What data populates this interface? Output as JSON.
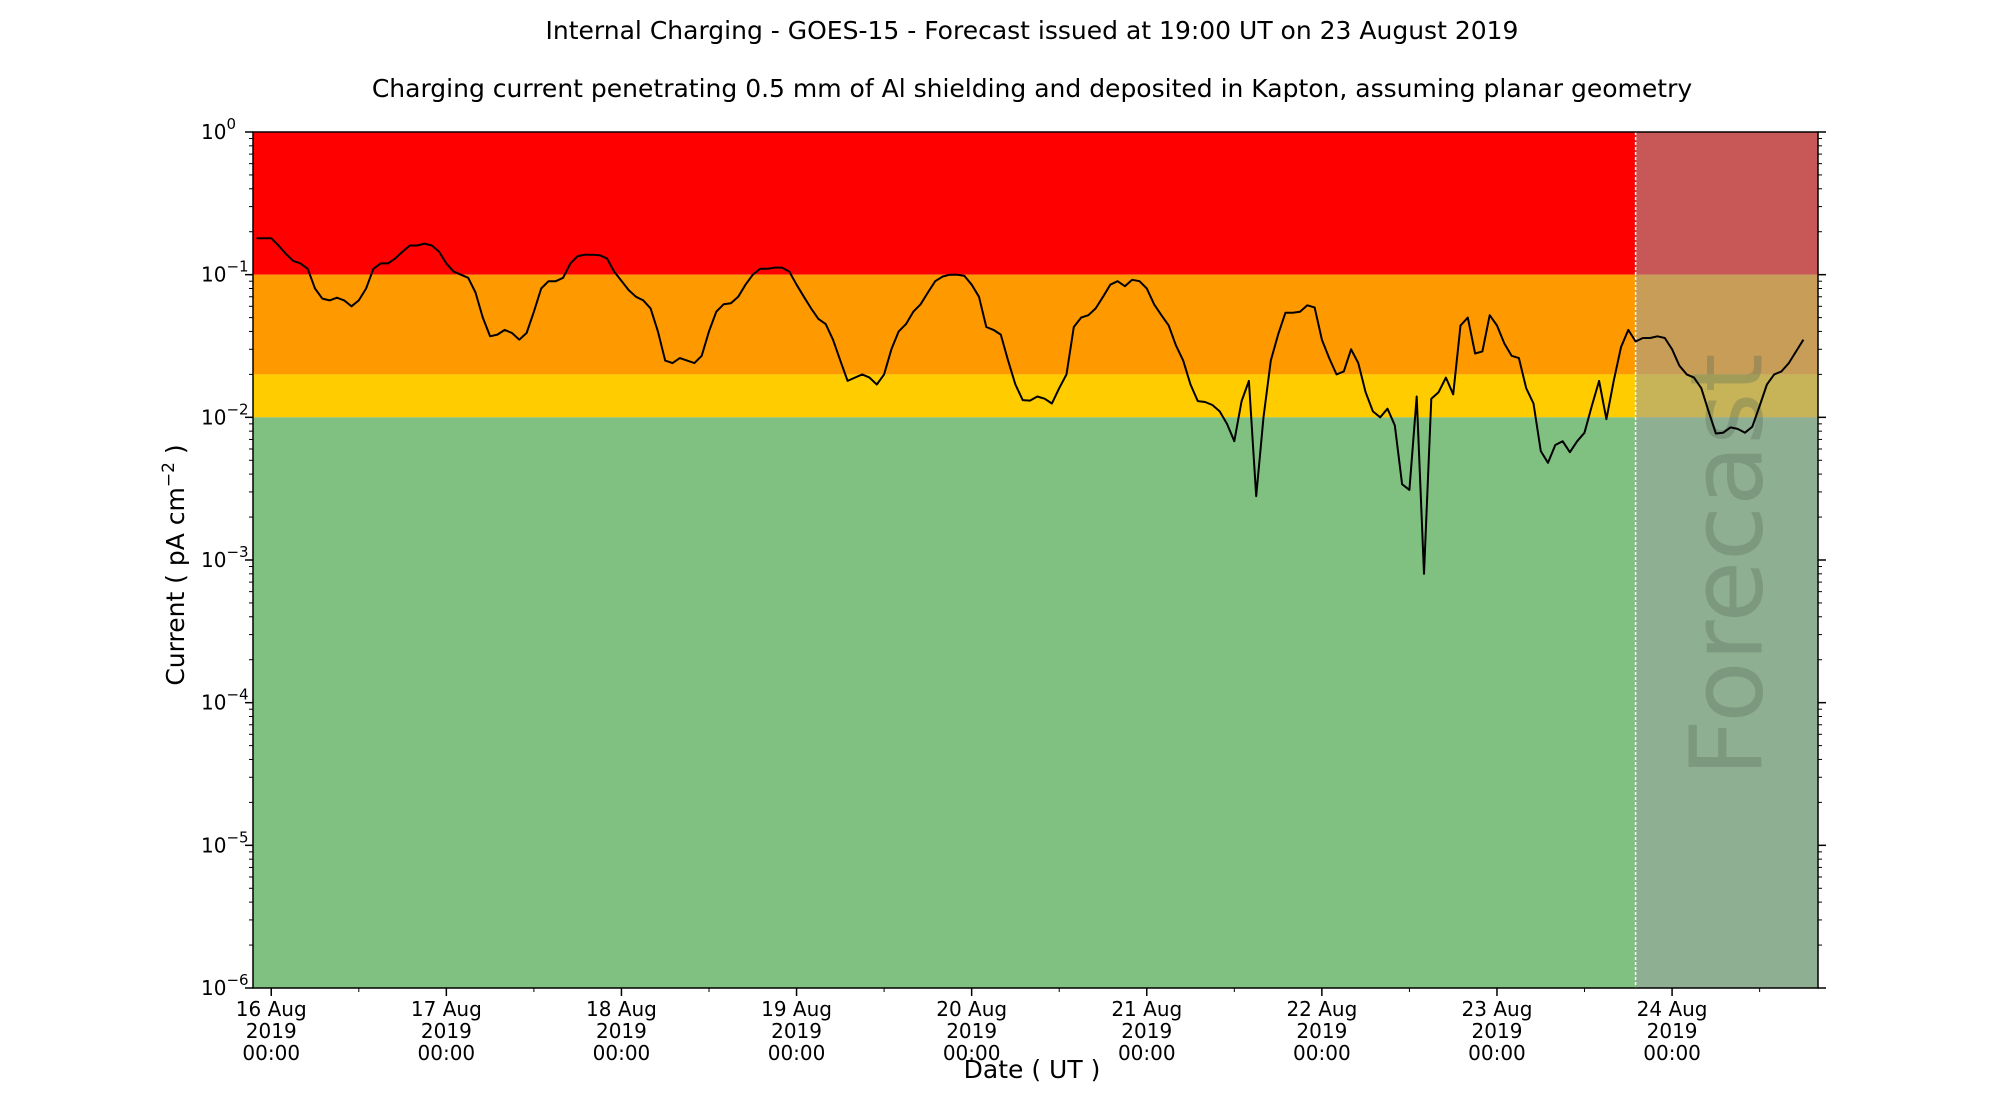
{
  "chart_data": {
    "type": "line",
    "title": "Internal Charging - GOES-15 - Forecast issued at 19:00 UT on 23 August 2019",
    "subtitle": "Charging current penetrating 0.5 mm of Al shielding and deposited in Kapton, assuming planar geometry",
    "xlabel": "Date ( UT )",
    "ylabel": "Current ( pA cm",
    "ylabel_exponent": "−2",
    "ylabel_close": " )",
    "y_scale": "log",
    "ylim": [
      1e-06,
      1
    ],
    "y_ticks": [
      {
        "value": 1e-06,
        "base": "10",
        "exp": "−6"
      },
      {
        "value": 1e-05,
        "base": "10",
        "exp": "−5"
      },
      {
        "value": 0.0001,
        "base": "10",
        "exp": "−4"
      },
      {
        "value": 0.001,
        "base": "10",
        "exp": "−3"
      },
      {
        "value": 0.01,
        "base": "10",
        "exp": "−2"
      },
      {
        "value": 0.1,
        "base": "10",
        "exp": "−1"
      },
      {
        "value": 1,
        "base": "10",
        "exp": "0"
      }
    ],
    "xlim": [
      "2019-08-15T21:30",
      "2019-08-24T20:00"
    ],
    "x_ticks": [
      {
        "date": "2019-08-16T00:00",
        "line1": "16 Aug",
        "line2": "2019",
        "line3": "00:00"
      },
      {
        "date": "2019-08-17T00:00",
        "line1": "17 Aug",
        "line2": "2019",
        "line3": "00:00"
      },
      {
        "date": "2019-08-18T00:00",
        "line1": "18 Aug",
        "line2": "2019",
        "line3": "00:00"
      },
      {
        "date": "2019-08-19T00:00",
        "line1": "19 Aug",
        "line2": "2019",
        "line3": "00:00"
      },
      {
        "date": "2019-08-20T00:00",
        "line1": "20 Aug",
        "line2": "2019",
        "line3": "00:00"
      },
      {
        "date": "2019-08-21T00:00",
        "line1": "21 Aug",
        "line2": "2019",
        "line3": "00:00"
      },
      {
        "date": "2019-08-22T00:00",
        "line1": "22 Aug",
        "line2": "2019",
        "line3": "00:00"
      },
      {
        "date": "2019-08-23T00:00",
        "line1": "23 Aug",
        "line2": "2019",
        "line3": "00:00"
      },
      {
        "date": "2019-08-24T00:00",
        "line1": "24 Aug",
        "line2": "2019",
        "line3": "00:00"
      }
    ],
    "minor_x_ticks": [
      "2019-08-16T12:00",
      "2019-08-17T12:00",
      "2019-08-18T12:00",
      "2019-08-19T12:00",
      "2019-08-20T12:00",
      "2019-08-21T12:00",
      "2019-08-22T12:00",
      "2019-08-23T12:00",
      "2019-08-24T12:00"
    ],
    "bands": [
      {
        "name": "red",
        "from": 0.1,
        "to": 1,
        "color": "#ff0000"
      },
      {
        "name": "orange",
        "from": 0.02,
        "to": 0.1,
        "color": "#ff9900"
      },
      {
        "name": "yellow",
        "from": 0.01,
        "to": 0.02,
        "color": "#ffcc00"
      },
      {
        "name": "green",
        "from": 1e-06,
        "to": 0.01,
        "color": "#80c080"
      }
    ],
    "forecast": {
      "start": "2019-08-23T19:00",
      "label": "Forecast",
      "overlay_color": "#9aa0a0",
      "overlay_opacity": 0.55,
      "divider_color": "#ffffff"
    },
    "series": [
      {
        "color": "#000000",
        "points": [
          [
            "2019-08-15T22:00",
            0.18
          ],
          [
            "2019-08-16T00:00",
            0.18
          ],
          [
            "2019-08-16T01:00",
            0.16
          ],
          [
            "2019-08-16T02:00",
            0.14
          ],
          [
            "2019-08-16T03:00",
            0.125
          ],
          [
            "2019-08-16T04:00",
            0.12
          ],
          [
            "2019-08-16T05:00",
            0.11
          ],
          [
            "2019-08-16T06:00",
            0.08
          ],
          [
            "2019-08-16T07:00",
            0.068
          ],
          [
            "2019-08-16T08:00",
            0.066
          ],
          [
            "2019-08-16T09:00",
            0.069
          ],
          [
            "2019-08-16T10:00",
            0.066
          ],
          [
            "2019-08-16T11:00",
            0.06
          ],
          [
            "2019-08-16T12:00",
            0.066
          ],
          [
            "2019-08-16T13:00",
            0.08
          ],
          [
            "2019-08-16T14:00",
            0.11
          ],
          [
            "2019-08-16T15:00",
            0.12
          ],
          [
            "2019-08-16T16:00",
            0.12
          ],
          [
            "2019-08-16T17:00",
            0.13
          ],
          [
            "2019-08-16T18:00",
            0.145
          ],
          [
            "2019-08-16T19:00",
            0.16
          ],
          [
            "2019-08-16T20:00",
            0.16
          ],
          [
            "2019-08-16T21:00",
            0.165
          ],
          [
            "2019-08-16T22:00",
            0.16
          ],
          [
            "2019-08-16T23:00",
            0.145
          ],
          [
            "2019-08-17T00:00",
            0.12
          ],
          [
            "2019-08-17T01:00",
            0.105
          ],
          [
            "2019-08-17T02:00",
            0.1
          ],
          [
            "2019-08-17T03:00",
            0.095
          ],
          [
            "2019-08-17T04:00",
            0.075
          ],
          [
            "2019-08-17T05:00",
            0.05
          ],
          [
            "2019-08-17T06:00",
            0.037
          ],
          [
            "2019-08-17T07:00",
            0.038
          ],
          [
            "2019-08-17T08:00",
            0.041
          ],
          [
            "2019-08-17T09:00",
            0.039
          ],
          [
            "2019-08-17T10:00",
            0.035
          ],
          [
            "2019-08-17T11:00",
            0.039
          ],
          [
            "2019-08-17T12:00",
            0.055
          ],
          [
            "2019-08-17T13:00",
            0.08
          ],
          [
            "2019-08-17T14:00",
            0.09
          ],
          [
            "2019-08-17T15:00",
            0.09
          ],
          [
            "2019-08-17T16:00",
            0.095
          ],
          [
            "2019-08-17T17:00",
            0.12
          ],
          [
            "2019-08-17T18:00",
            0.135
          ],
          [
            "2019-08-17T19:00",
            0.138
          ],
          [
            "2019-08-17T20:00",
            0.138
          ],
          [
            "2019-08-17T21:00",
            0.137
          ],
          [
            "2019-08-17T22:00",
            0.13
          ],
          [
            "2019-08-17T23:00",
            0.105
          ],
          [
            "2019-08-18T01:00",
            0.078
          ],
          [
            "2019-08-18T02:00",
            0.07
          ],
          [
            "2019-08-18T03:00",
            0.066
          ],
          [
            "2019-08-18T04:00",
            0.058
          ],
          [
            "2019-08-18T05:00",
            0.04
          ],
          [
            "2019-08-18T06:00",
            0.025
          ],
          [
            "2019-08-18T07:00",
            0.024
          ],
          [
            "2019-08-18T08:00",
            0.026
          ],
          [
            "2019-08-18T09:00",
            0.025
          ],
          [
            "2019-08-18T10:00",
            0.024
          ],
          [
            "2019-08-18T11:00",
            0.027
          ],
          [
            "2019-08-18T12:00",
            0.04
          ],
          [
            "2019-08-18T13:00",
            0.055
          ],
          [
            "2019-08-18T14:00",
            0.062
          ],
          [
            "2019-08-18T15:00",
            0.063
          ],
          [
            "2019-08-18T16:00",
            0.07
          ],
          [
            "2019-08-18T17:00",
            0.085
          ],
          [
            "2019-08-18T18:00",
            0.1
          ],
          [
            "2019-08-18T19:00",
            0.11
          ],
          [
            "2019-08-18T20:00",
            0.11
          ],
          [
            "2019-08-18T21:00",
            0.112
          ],
          [
            "2019-08-18T22:00",
            0.112
          ],
          [
            "2019-08-18T23:00",
            0.105
          ],
          [
            "2019-08-19T00:00",
            0.085
          ],
          [
            "2019-08-19T01:00",
            0.07
          ],
          [
            "2019-08-19T02:00",
            0.058
          ],
          [
            "2019-08-19T03:00",
            0.049
          ],
          [
            "2019-08-19T04:00",
            0.045
          ],
          [
            "2019-08-19T05:00",
            0.035
          ],
          [
            "2019-08-19T06:00",
            0.025
          ],
          [
            "2019-08-19T07:00",
            0.018
          ],
          [
            "2019-08-19T08:00",
            0.019
          ],
          [
            "2019-08-19T09:00",
            0.02
          ],
          [
            "2019-08-19T10:00",
            0.019
          ],
          [
            "2019-08-19T11:00",
            0.017
          ],
          [
            "2019-08-19T12:00",
            0.02
          ],
          [
            "2019-08-19T13:00",
            0.03
          ],
          [
            "2019-08-19T14:00",
            0.04
          ],
          [
            "2019-08-19T15:00",
            0.045
          ],
          [
            "2019-08-19T16:00",
            0.055
          ],
          [
            "2019-08-19T17:00",
            0.062
          ],
          [
            "2019-08-19T18:00",
            0.075
          ],
          [
            "2019-08-19T19:00",
            0.09
          ],
          [
            "2019-08-19T20:00",
            0.097
          ],
          [
            "2019-08-19T21:00",
            0.1
          ],
          [
            "2019-08-19T22:00",
            0.1
          ],
          [
            "2019-08-19T23:00",
            0.098
          ],
          [
            "2019-08-20T00:00",
            0.085
          ],
          [
            "2019-08-20T01:00",
            0.07
          ],
          [
            "2019-08-20T02:00",
            0.043
          ],
          [
            "2019-08-20T03:00",
            0.041
          ],
          [
            "2019-08-20T04:00",
            0.038
          ],
          [
            "2019-08-20T05:00",
            0.025
          ],
          [
            "2019-08-20T06:00",
            0.017
          ],
          [
            "2019-08-20T07:00",
            0.0132
          ],
          [
            "2019-08-20T08:00",
            0.0131
          ],
          [
            "2019-08-20T09:00",
            0.014
          ],
          [
            "2019-08-20T10:00",
            0.0135
          ],
          [
            "2019-08-20T11:00",
            0.0125
          ],
          [
            "2019-08-20T12:00",
            0.016
          ],
          [
            "2019-08-20T13:00",
            0.02
          ],
          [
            "2019-08-20T14:00",
            0.043
          ],
          [
            "2019-08-20T15:00",
            0.05
          ],
          [
            "2019-08-20T16:00",
            0.052
          ],
          [
            "2019-08-20T17:00",
            0.058
          ],
          [
            "2019-08-20T18:00",
            0.07
          ],
          [
            "2019-08-20T19:00",
            0.085
          ],
          [
            "2019-08-20T20:00",
            0.09
          ],
          [
            "2019-08-20T21:00",
            0.083
          ],
          [
            "2019-08-20T22:00",
            0.092
          ],
          [
            "2019-08-20T23:00",
            0.09
          ],
          [
            "2019-08-21T00:00",
            0.08
          ],
          [
            "2019-08-21T01:00",
            0.062
          ],
          [
            "2019-08-21T02:00",
            0.052
          ],
          [
            "2019-08-21T03:00",
            0.044
          ],
          [
            "2019-08-21T04:00",
            0.032
          ],
          [
            "2019-08-21T05:00",
            0.025
          ],
          [
            "2019-08-21T06:00",
            0.017
          ],
          [
            "2019-08-21T07:00",
            0.013
          ],
          [
            "2019-08-21T08:00",
            0.0128
          ],
          [
            "2019-08-21T09:00",
            0.0122
          ],
          [
            "2019-08-21T10:00",
            0.011
          ],
          [
            "2019-08-21T11:00",
            0.009
          ],
          [
            "2019-08-21T12:00",
            0.0068
          ],
          [
            "2019-08-21T13:00",
            0.013
          ],
          [
            "2019-08-21T14:00",
            0.018
          ],
          [
            "2019-08-21T15:00",
            0.0028
          ],
          [
            "2019-08-21T16:00",
            0.01
          ],
          [
            "2019-08-21T17:00",
            0.025
          ],
          [
            "2019-08-21T18:00",
            0.038
          ],
          [
            "2019-08-21T19:00",
            0.054
          ],
          [
            "2019-08-21T20:00",
            0.054
          ],
          [
            "2019-08-21T21:00",
            0.055
          ],
          [
            "2019-08-21T22:00",
            0.061
          ],
          [
            "2019-08-21T23:00",
            0.059
          ],
          [
            "2019-08-22T00:00",
            0.035
          ],
          [
            "2019-08-22T01:00",
            0.026
          ],
          [
            "2019-08-22T02:00",
            0.02
          ],
          [
            "2019-08-22T03:00",
            0.021
          ],
          [
            "2019-08-22T04:00",
            0.03
          ],
          [
            "2019-08-22T05:00",
            0.024
          ],
          [
            "2019-08-22T06:00",
            0.015
          ],
          [
            "2019-08-22T07:00",
            0.011
          ],
          [
            "2019-08-22T08:00",
            0.01
          ],
          [
            "2019-08-22T09:00",
            0.0115
          ],
          [
            "2019-08-22T10:00",
            0.0088
          ],
          [
            "2019-08-22T11:00",
            0.0034
          ],
          [
            "2019-08-22T12:00",
            0.0031
          ],
          [
            "2019-08-22T13:00",
            0.014
          ],
          [
            "2019-08-22T14:00",
            0.0008
          ],
          [
            "2019-08-22T15:00",
            0.0135
          ],
          [
            "2019-08-22T16:00",
            0.015
          ],
          [
            "2019-08-22T17:00",
            0.019
          ],
          [
            "2019-08-22T18:00",
            0.0145
          ],
          [
            "2019-08-22T19:00",
            0.044
          ],
          [
            "2019-08-22T20:00",
            0.05
          ],
          [
            "2019-08-22T21:00",
            0.028
          ],
          [
            "2019-08-22T22:00",
            0.029
          ],
          [
            "2019-08-22T23:00",
            0.052
          ],
          [
            "2019-08-23T00:00",
            0.044
          ],
          [
            "2019-08-23T01:00",
            0.033
          ],
          [
            "2019-08-23T02:00",
            0.027
          ],
          [
            "2019-08-23T03:00",
            0.026
          ],
          [
            "2019-08-23T04:00",
            0.016
          ],
          [
            "2019-08-23T05:00",
            0.0125
          ],
          [
            "2019-08-23T06:00",
            0.0058
          ],
          [
            "2019-08-23T07:00",
            0.0048
          ],
          [
            "2019-08-23T08:00",
            0.0064
          ],
          [
            "2019-08-23T09:00",
            0.0068
          ],
          [
            "2019-08-23T10:00",
            0.0057
          ],
          [
            "2019-08-23T11:00",
            0.0068
          ],
          [
            "2019-08-23T12:00",
            0.0078
          ],
          [
            "2019-08-23T13:00",
            0.012
          ],
          [
            "2019-08-23T14:00",
            0.018
          ],
          [
            "2019-08-23T15:00",
            0.0097
          ],
          [
            "2019-08-23T16:00",
            0.018
          ],
          [
            "2019-08-23T17:00",
            0.031
          ],
          [
            "2019-08-23T18:00",
            0.041
          ],
          [
            "2019-08-23T19:00",
            0.034
          ],
          [
            "2019-08-23T20:00",
            0.036
          ],
          [
            "2019-08-23T21:00",
            0.036
          ],
          [
            "2019-08-23T22:00",
            0.037
          ],
          [
            "2019-08-23T23:00",
            0.036
          ],
          [
            "2019-08-24T00:00",
            0.03
          ],
          [
            "2019-08-24T01:00",
            0.023
          ],
          [
            "2019-08-24T02:00",
            0.02
          ],
          [
            "2019-08-24T03:00",
            0.019
          ],
          [
            "2019-08-24T04:00",
            0.016
          ],
          [
            "2019-08-24T05:00",
            0.011
          ],
          [
            "2019-08-24T06:00",
            0.0077
          ],
          [
            "2019-08-24T07:00",
            0.0078
          ],
          [
            "2019-08-24T08:00",
            0.0085
          ],
          [
            "2019-08-24T09:00",
            0.0083
          ],
          [
            "2019-08-24T10:00",
            0.0078
          ],
          [
            "2019-08-24T11:00",
            0.0086
          ],
          [
            "2019-08-24T12:00",
            0.012
          ],
          [
            "2019-08-24T13:00",
            0.017
          ],
          [
            "2019-08-24T14:00",
            0.02
          ],
          [
            "2019-08-24T15:00",
            0.021
          ],
          [
            "2019-08-24T16:00",
            0.024
          ],
          [
            "2019-08-24T17:00",
            0.029
          ],
          [
            "2019-08-24T18:00",
            0.035
          ]
        ]
      }
    ]
  }
}
